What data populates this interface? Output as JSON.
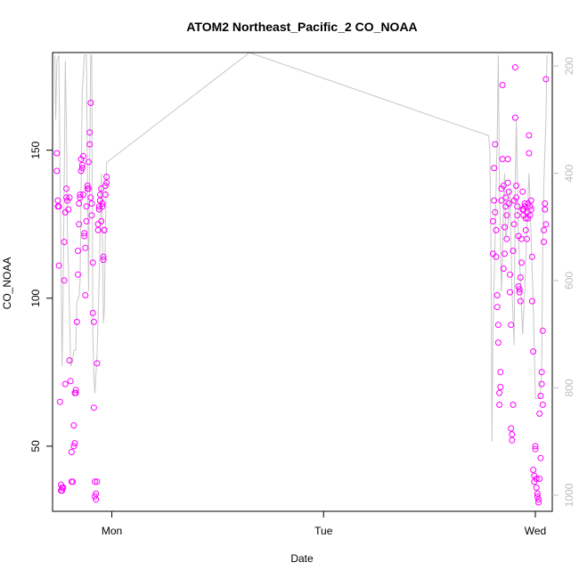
{
  "chart_data": {
    "type": "scatter",
    "title": "ATOM2 Northeast_Pacific_2 CO_NOAA",
    "xlabel": "Date",
    "ylabel": "CO_NOAA",
    "x_ticks": [
      "Mon",
      "Tue",
      "Wed"
    ],
    "y_ticks": [
      50,
      100,
      150
    ],
    "y_range": [
      28,
      183
    ],
    "right_axis": {
      "label": "",
      "ticks": [
        200,
        400,
        600,
        800,
        1000
      ],
      "range": [
        1030,
        175
      ],
      "color": "#bdbdbd",
      "note": "right axis runs downward (pressure-like)"
    },
    "x_range_days": [
      -0.28,
      2.08
    ],
    "marker_color": "#ff00ff",
    "line_color": "#c8c8c8",
    "series": [
      {
        "name": "",
        "kind": "points",
        "points": [
          [
            -0.26,
            149
          ],
          [
            -0.26,
            143
          ],
          [
            -0.255,
            133
          ],
          [
            -0.255,
            131
          ],
          [
            -0.25,
            131
          ],
          [
            -0.25,
            111
          ],
          [
            -0.245,
            65
          ],
          [
            -0.24,
            37
          ],
          [
            -0.24,
            35
          ],
          [
            -0.235,
            36
          ],
          [
            -0.235,
            35
          ],
          [
            -0.23,
            36
          ],
          [
            -0.225,
            119
          ],
          [
            -0.225,
            106
          ],
          [
            -0.22,
            71
          ],
          [
            -0.22,
            129
          ],
          [
            -0.215,
            134
          ],
          [
            -0.215,
            137
          ],
          [
            -0.21,
            133
          ],
          [
            -0.205,
            130
          ],
          [
            -0.2,
            134
          ],
          [
            -0.2,
            79
          ],
          [
            -0.195,
            72
          ],
          [
            -0.19,
            48
          ],
          [
            -0.19,
            38
          ],
          [
            -0.185,
            38
          ],
          [
            -0.18,
            57
          ],
          [
            -0.18,
            50
          ],
          [
            -0.175,
            51
          ],
          [
            -0.175,
            68
          ],
          [
            -0.17,
            69
          ],
          [
            -0.17,
            68
          ],
          [
            -0.165,
            92
          ],
          [
            -0.16,
            108
          ],
          [
            -0.16,
            116
          ],
          [
            -0.155,
            125
          ],
          [
            -0.155,
            132
          ],
          [
            -0.15,
            134
          ],
          [
            -0.15,
            135
          ],
          [
            -0.145,
            143
          ],
          [
            -0.145,
            147
          ],
          [
            -0.14,
            145
          ],
          [
            -0.14,
            144
          ],
          [
            -0.135,
            148
          ],
          [
            -0.135,
            135
          ],
          [
            -0.13,
            122
          ],
          [
            -0.13,
            121
          ],
          [
            -0.125,
            117
          ],
          [
            -0.125,
            101
          ],
          [
            -0.12,
            126
          ],
          [
            -0.12,
            131
          ],
          [
            -0.115,
            137
          ],
          [
            -0.115,
            138
          ],
          [
            -0.11,
            137
          ],
          [
            -0.11,
            146
          ],
          [
            -0.105,
            152
          ],
          [
            -0.105,
            156
          ],
          [
            -0.1,
            166
          ],
          [
            -0.1,
            134
          ],
          [
            -0.095,
            132
          ],
          [
            -0.095,
            128
          ],
          [
            -0.09,
            112
          ],
          [
            -0.09,
            95
          ],
          [
            -0.085,
            92
          ],
          [
            -0.085,
            63
          ],
          [
            -0.08,
            38
          ],
          [
            -0.08,
            33
          ],
          [
            -0.075,
            32
          ],
          [
            -0.075,
            34
          ],
          [
            -0.07,
            38
          ],
          [
            -0.07,
            78
          ],
          [
            -0.065,
            125
          ],
          [
            -0.065,
            123
          ],
          [
            -0.06,
            130
          ],
          [
            -0.06,
            131
          ],
          [
            -0.055,
            133
          ],
          [
            -0.055,
            135
          ],
          [
            -0.05,
            137
          ],
          [
            -0.05,
            126
          ],
          [
            -0.045,
            131
          ],
          [
            -0.045,
            132
          ],
          [
            -0.04,
            113
          ],
          [
            -0.04,
            114
          ],
          [
            -0.035,
            123
          ],
          [
            -0.035,
            123
          ],
          [
            -0.03,
            135
          ],
          [
            -0.03,
            138
          ],
          [
            -0.025,
            139
          ],
          [
            -0.025,
            141
          ],
          [
            1.8,
            126
          ],
          [
            1.8,
            115
          ],
          [
            1.805,
            133
          ],
          [
            1.805,
            144
          ],
          [
            1.81,
            152
          ],
          [
            1.81,
            129
          ],
          [
            1.815,
            123
          ],
          [
            1.815,
            114
          ],
          [
            1.82,
            101
          ],
          [
            1.82,
            97
          ],
          [
            1.825,
            91
          ],
          [
            1.825,
            85
          ],
          [
            1.83,
            64
          ],
          [
            1.83,
            68
          ],
          [
            1.835,
            75
          ],
          [
            1.835,
            70
          ],
          [
            1.84,
            133
          ],
          [
            1.84,
            137
          ],
          [
            1.845,
            147
          ],
          [
            1.845,
            172
          ],
          [
            1.85,
            138
          ],
          [
            1.85,
            110
          ],
          [
            1.855,
            115
          ],
          [
            1.855,
            124
          ],
          [
            1.86,
            134
          ],
          [
            1.86,
            131
          ],
          [
            1.865,
            128
          ],
          [
            1.865,
            120
          ],
          [
            1.87,
            139
          ],
          [
            1.87,
            147
          ],
          [
            1.875,
            136
          ],
          [
            1.875,
            132
          ],
          [
            1.88,
            108
          ],
          [
            1.88,
            102
          ],
          [
            1.885,
            91
          ],
          [
            1.885,
            56
          ],
          [
            1.89,
            54
          ],
          [
            1.89,
            52
          ],
          [
            1.895,
            64
          ],
          [
            1.895,
            116
          ],
          [
            1.9,
            125
          ],
          [
            1.9,
            133
          ],
          [
            1.905,
            178
          ],
          [
            1.905,
            161
          ],
          [
            1.91,
            138
          ],
          [
            1.91,
            134
          ],
          [
            1.915,
            131
          ],
          [
            1.915,
            128
          ],
          [
            1.92,
            121
          ],
          [
            1.92,
            104
          ],
          [
            1.925,
            102
          ],
          [
            1.925,
            103
          ],
          [
            1.93,
            107
          ],
          [
            1.93,
            99
          ],
          [
            1.935,
            112
          ],
          [
            1.935,
            120
          ],
          [
            1.94,
            130
          ],
          [
            1.94,
            136
          ],
          [
            1.945,
            128
          ],
          [
            1.945,
            130
          ],
          [
            1.95,
            132
          ],
          [
            1.95,
            131
          ],
          [
            1.955,
            123
          ],
          [
            1.955,
            127
          ],
          [
            1.96,
            120
          ],
          [
            1.96,
            129
          ],
          [
            1.965,
            132
          ],
          [
            1.965,
            127
          ],
          [
            1.97,
            149
          ],
          [
            1.97,
            155
          ],
          [
            1.975,
            131
          ],
          [
            1.975,
            128
          ],
          [
            1.98,
            130
          ],
          [
            1.98,
            133
          ],
          [
            1.985,
            114
          ],
          [
            1.985,
            99
          ],
          [
            1.99,
            82
          ],
          [
            1.99,
            42
          ],
          [
            1.995,
            40
          ],
          [
            1.995,
            38
          ],
          [
            2.0,
            50
          ],
          [
            2.0,
            49
          ],
          [
            2.005,
            39
          ],
          [
            2.005,
            36
          ],
          [
            2.01,
            34
          ],
          [
            2.01,
            33
          ],
          [
            2.015,
            32
          ],
          [
            2.015,
            31
          ],
          [
            2.02,
            61
          ],
          [
            2.02,
            39
          ],
          [
            2.025,
            46
          ],
          [
            2.025,
            67
          ],
          [
            2.03,
            75
          ],
          [
            2.03,
            71
          ],
          [
            2.035,
            64
          ],
          [
            2.035,
            89
          ],
          [
            2.04,
            119
          ],
          [
            2.04,
            123
          ],
          [
            2.045,
            130
          ],
          [
            2.045,
            132
          ],
          [
            2.05,
            125
          ],
          [
            2.05,
            174
          ]
        ]
      },
      {
        "name": "",
        "kind": "line",
        "axis": "right",
        "points": [
          [
            -0.27,
            180
          ],
          [
            -0.265,
            300
          ],
          [
            -0.26,
            190
          ],
          [
            -0.25,
            180
          ],
          [
            -0.24,
            580
          ],
          [
            -0.235,
            760
          ],
          [
            -0.23,
            620
          ],
          [
            -0.22,
            190
          ],
          [
            -0.215,
            300
          ],
          [
            -0.21,
            500
          ],
          [
            -0.2,
            650
          ],
          [
            -0.195,
            760
          ],
          [
            -0.185,
            750
          ],
          [
            -0.18,
            730
          ],
          [
            -0.17,
            730
          ],
          [
            -0.165,
            640
          ],
          [
            -0.155,
            630
          ],
          [
            -0.15,
            600
          ],
          [
            -0.145,
            420
          ],
          [
            -0.14,
            250
          ],
          [
            -0.13,
            180
          ],
          [
            -0.12,
            180
          ],
          [
            -0.11,
            620
          ],
          [
            -0.1,
            180
          ],
          [
            -0.095,
            180
          ],
          [
            -0.09,
            700
          ],
          [
            -0.085,
            780
          ],
          [
            -0.08,
            810
          ],
          [
            -0.07,
            740
          ],
          [
            -0.06,
            600
          ],
          [
            -0.05,
            400
          ],
          [
            -0.045,
            500
          ],
          [
            -0.04,
            680
          ],
          [
            -0.035,
            650
          ],
          [
            -0.03,
            500
          ],
          [
            -0.025,
            380
          ],
          [
            0.65,
            175
          ],
          [
            1.78,
            330
          ],
          [
            1.785,
            360
          ],
          [
            1.79,
            520
          ],
          [
            1.795,
            900
          ],
          [
            1.8,
            700
          ],
          [
            1.81,
            520
          ],
          [
            1.815,
            420
          ],
          [
            1.82,
            330
          ],
          [
            1.825,
            180
          ],
          [
            1.83,
            420
          ],
          [
            1.84,
            620
          ],
          [
            1.845,
            560
          ],
          [
            1.85,
            450
          ],
          [
            1.855,
            400
          ],
          [
            1.86,
            520
          ],
          [
            1.87,
            500
          ],
          [
            1.88,
            430
          ],
          [
            1.89,
            620
          ],
          [
            1.9,
            720
          ],
          [
            1.905,
            420
          ],
          [
            1.91,
            300
          ],
          [
            1.92,
            520
          ],
          [
            1.93,
            600
          ],
          [
            1.94,
            700
          ],
          [
            1.95,
            620
          ],
          [
            1.96,
            500
          ],
          [
            1.97,
            400
          ],
          [
            1.98,
            520
          ],
          [
            1.99,
            640
          ],
          [
            2.0,
            820
          ],
          [
            2.02,
            820
          ],
          [
            2.025,
            800
          ],
          [
            2.03,
            760
          ],
          [
            2.035,
            540
          ],
          [
            2.04,
            420
          ],
          [
            2.05,
            300
          ],
          [
            2.055,
            180
          ]
        ]
      }
    ],
    "grid": false,
    "legend": "none"
  }
}
